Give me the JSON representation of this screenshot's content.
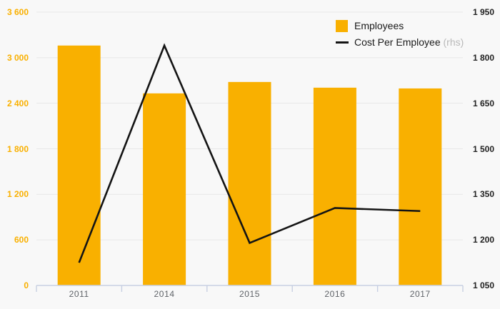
{
  "chart_data": {
    "type": "combo-bar-line",
    "title": "",
    "categories": [
      "2011",
      "2014",
      "2015",
      "2016",
      "2017"
    ],
    "series": [
      {
        "name": "Employees",
        "type": "bar",
        "axis": "left",
        "color": "#f9b000",
        "values": [
          3160,
          2530,
          2680,
          2605,
          2595
        ]
      },
      {
        "name": "Cost Per Employee",
        "suffix_label": "(rhs)",
        "type": "line",
        "axis": "right",
        "color": "#141414",
        "values": [
          1125,
          1840,
          1190,
          1305,
          1295
        ]
      }
    ],
    "left_axis": {
      "min": 0,
      "max": 3600,
      "step": 600,
      "tick_labels": [
        "0",
        "600",
        "1 200",
        "1 800",
        "2 400",
        "3 000",
        "3 600"
      ],
      "color": "#f9b000"
    },
    "right_axis": {
      "min": 1050,
      "max": 1950,
      "step": 150,
      "tick_labels": [
        "1 050",
        "1 200",
        "1 350",
        "1 500",
        "1 650",
        "1 800",
        "1 950"
      ],
      "color": "#222222"
    },
    "grid": true,
    "legend_position": "top-right"
  },
  "colors": {
    "background": "#f8f8f8",
    "gridline": "#e8e8e8",
    "axis_line": "#c7cfe2",
    "x_label": "#5f6368",
    "bar": "#f9b000",
    "line": "#141414",
    "legend_text": "#1a1a1a",
    "rhs_note": "#b9b9b9"
  }
}
